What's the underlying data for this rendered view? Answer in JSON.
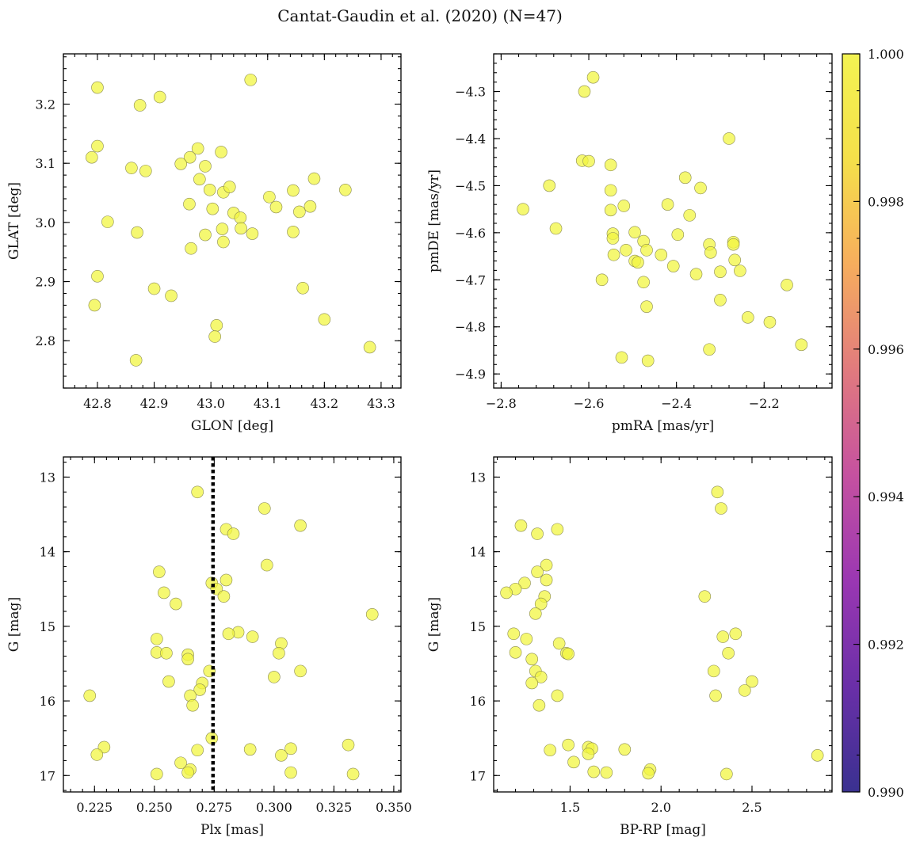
{
  "figure": {
    "title": "Cantat-Gaudin et al. (2020) (N=47)",
    "point_color": "#f2f542",
    "colorbar": {
      "colormap": "plasma",
      "range": [
        0.99,
        1.0
      ],
      "ticks": [
        0.99,
        0.992,
        0.994,
        0.996,
        0.998,
        1.0
      ],
      "tick_labels": [
        "0.990",
        "0.992",
        "0.994",
        "0.996",
        "0.998",
        "1.000"
      ],
      "stops": [
        "#3a3190",
        "#6a2fa8",
        "#9a37b2",
        "#c551a0",
        "#e17a7e",
        "#f6ad5d",
        "#f5e04a",
        "#f3f352"
      ]
    }
  },
  "chart_data": [
    {
      "type": "scatter",
      "id": "glon-glat",
      "xlabel": "GLON [deg]",
      "ylabel": "GLAT [deg]",
      "xlim": [
        42.74,
        43.335
      ],
      "ylim": [
        2.72,
        3.285
      ],
      "xticks": [
        42.8,
        42.9,
        43.0,
        43.1,
        43.2,
        43.3
      ],
      "xtick_labels": [
        "42.8",
        "42.9",
        "43.0",
        "43.1",
        "43.2",
        "43.3"
      ],
      "yticks": [
        2.8,
        2.9,
        3.0,
        3.1,
        3.2
      ],
      "ytick_labels": [
        "2.8",
        "2.9",
        "3.0",
        "3.1",
        "3.2"
      ],
      "xminor": 0.02,
      "yminor": 0.02,
      "y_inverted": false,
      "points": [
        [
          42.8,
          3.228
        ],
        [
          43.07,
          3.241
        ],
        [
          42.91,
          3.212
        ],
        [
          42.875,
          3.198
        ],
        [
          42.8,
          3.129
        ],
        [
          42.79,
          3.11
        ],
        [
          42.977,
          3.125
        ],
        [
          42.963,
          3.11
        ],
        [
          42.947,
          3.099
        ],
        [
          42.86,
          3.092
        ],
        [
          42.885,
          3.087
        ],
        [
          42.99,
          3.095
        ],
        [
          43.018,
          3.119
        ],
        [
          42.98,
          3.073
        ],
        [
          42.998,
          3.055
        ],
        [
          43.022,
          3.051
        ],
        [
          43.033,
          3.06
        ],
        [
          43.103,
          3.043
        ],
        [
          43.237,
          3.055
        ],
        [
          43.145,
          3.054
        ],
        [
          43.182,
          3.074
        ],
        [
          42.962,
          3.031
        ],
        [
          43.003,
          3.023
        ],
        [
          43.04,
          3.016
        ],
        [
          43.052,
          3.008
        ],
        [
          43.115,
          3.026
        ],
        [
          43.156,
          3.018
        ],
        [
          43.175,
          3.027
        ],
        [
          42.818,
          3.001
        ],
        [
          42.87,
          2.983
        ],
        [
          42.99,
          2.979
        ],
        [
          43.02,
          2.989
        ],
        [
          43.053,
          2.99
        ],
        [
          43.073,
          2.981
        ],
        [
          43.145,
          2.984
        ],
        [
          42.965,
          2.956
        ],
        [
          43.022,
          2.967
        ],
        [
          42.8,
          2.909
        ],
        [
          42.795,
          2.86
        ],
        [
          42.9,
          2.888
        ],
        [
          42.93,
          2.876
        ],
        [
          43.162,
          2.889
        ],
        [
          43.01,
          2.826
        ],
        [
          43.007,
          2.807
        ],
        [
          43.2,
          2.836
        ],
        [
          42.868,
          2.767
        ],
        [
          43.28,
          2.789
        ]
      ]
    },
    {
      "type": "scatter",
      "id": "pm",
      "xlabel": "pmRA [mas/yr]",
      "ylabel": "pmDE [mas/yr]",
      "xlim": [
        -2.817,
        -2.045
      ],
      "ylim": [
        -4.93,
        -4.22
      ],
      "xticks": [
        -2.8,
        -2.6,
        -2.4,
        -2.2
      ],
      "xtick_labels": [
        "−2.8",
        "−2.6",
        "−2.4",
        "−2.2"
      ],
      "yticks": [
        -4.9,
        -4.8,
        -4.7,
        -4.6,
        -4.5,
        -4.4,
        -4.3
      ],
      "ytick_labels": [
        "−4.9",
        "−4.8",
        "−4.7",
        "−4.6",
        "−4.5",
        "−4.4",
        "−4.3"
      ],
      "xminor": 0.04,
      "yminor": 0.02,
      "y_inverted": false,
      "points": [
        [
          -2.59,
          -4.27
        ],
        [
          -2.61,
          -4.3
        ],
        [
          -2.28,
          -4.4
        ],
        [
          -2.615,
          -4.447
        ],
        [
          -2.6,
          -4.448
        ],
        [
          -2.69,
          -4.5
        ],
        [
          -2.75,
          -4.55
        ],
        [
          -2.55,
          -4.456
        ],
        [
          -2.38,
          -4.483
        ],
        [
          -2.345,
          -4.505
        ],
        [
          -2.55,
          -4.51
        ],
        [
          -2.42,
          -4.54
        ],
        [
          -2.52,
          -4.543
        ],
        [
          -2.55,
          -4.552
        ],
        [
          -2.37,
          -4.563
        ],
        [
          -2.675,
          -4.591
        ],
        [
          -2.545,
          -4.602
        ],
        [
          -2.495,
          -4.599
        ],
        [
          -2.397,
          -4.604
        ],
        [
          -2.545,
          -4.612
        ],
        [
          -2.475,
          -4.618
        ],
        [
          -2.325,
          -4.625
        ],
        [
          -2.27,
          -4.62
        ],
        [
          -2.27,
          -4.625
        ],
        [
          -2.515,
          -4.637
        ],
        [
          -2.468,
          -4.637
        ],
        [
          -2.322,
          -4.642
        ],
        [
          -2.543,
          -4.647
        ],
        [
          -2.435,
          -4.647
        ],
        [
          -2.495,
          -4.66
        ],
        [
          -2.488,
          -4.663
        ],
        [
          -2.267,
          -4.658
        ],
        [
          -2.407,
          -4.671
        ],
        [
          -2.3,
          -4.683
        ],
        [
          -2.255,
          -4.681
        ],
        [
          -2.355,
          -4.688
        ],
        [
          -2.57,
          -4.7
        ],
        [
          -2.475,
          -4.705
        ],
        [
          -2.148,
          -4.711
        ],
        [
          -2.3,
          -4.743
        ],
        [
          -2.468,
          -4.757
        ],
        [
          -2.237,
          -4.78
        ],
        [
          -2.187,
          -4.79
        ],
        [
          -2.115,
          -4.838
        ],
        [
          -2.325,
          -4.848
        ],
        [
          -2.525,
          -4.865
        ],
        [
          -2.465,
          -4.872
        ]
      ]
    },
    {
      "type": "scatter",
      "id": "plx-g",
      "xlabel": "Plx [mas]",
      "ylabel": "G [mag]",
      "xlim": [
        0.212,
        0.353
      ],
      "ylim": [
        12.73,
        17.22
      ],
      "y_inverted": true,
      "xticks": [
        0.225,
        0.25,
        0.275,
        0.3,
        0.325,
        0.35
      ],
      "xtick_labels": [
        "0.225",
        "0.250",
        "0.275",
        "0.300",
        "0.325",
        "0.350"
      ],
      "yticks": [
        13,
        14,
        15,
        16,
        17
      ],
      "ytick_labels": [
        "13",
        "14",
        "15",
        "16",
        "17"
      ],
      "xminor": 0.005,
      "yminor": 0.2,
      "vline_x": 0.2745,
      "points": [
        [
          0.268,
          13.2
        ],
        [
          0.296,
          13.42
        ],
        [
          0.311,
          13.65
        ],
        [
          0.28,
          13.7
        ],
        [
          0.283,
          13.76
        ],
        [
          0.297,
          14.18
        ],
        [
          0.252,
          14.27
        ],
        [
          0.28,
          14.38
        ],
        [
          0.274,
          14.42
        ],
        [
          0.276,
          14.5
        ],
        [
          0.254,
          14.55
        ],
        [
          0.279,
          14.6
        ],
        [
          0.259,
          14.7
        ],
        [
          0.341,
          14.84
        ],
        [
          0.285,
          15.08
        ],
        [
          0.281,
          15.1
        ],
        [
          0.291,
          15.14
        ],
        [
          0.251,
          15.17
        ],
        [
          0.303,
          15.23
        ],
        [
          0.251,
          15.35
        ],
        [
          0.255,
          15.36
        ],
        [
          0.302,
          15.36
        ],
        [
          0.264,
          15.38
        ],
        [
          0.264,
          15.44
        ],
        [
          0.311,
          15.6
        ],
        [
          0.273,
          15.6
        ],
        [
          0.3,
          15.68
        ],
        [
          0.256,
          15.74
        ],
        [
          0.27,
          15.76
        ],
        [
          0.269,
          15.85
        ],
        [
          0.265,
          15.93
        ],
        [
          0.223,
          15.93
        ],
        [
          0.266,
          16.06
        ],
        [
          0.229,
          16.62
        ],
        [
          0.268,
          16.66
        ],
        [
          0.29,
          16.65
        ],
        [
          0.307,
          16.64
        ],
        [
          0.331,
          16.59
        ],
        [
          0.226,
          16.72
        ],
        [
          0.303,
          16.73
        ],
        [
          0.261,
          16.83
        ],
        [
          0.265,
          16.92
        ],
        [
          0.264,
          16.96
        ],
        [
          0.307,
          16.96
        ],
        [
          0.251,
          16.98
        ],
        [
          0.333,
          16.98
        ],
        [
          0.274,
          16.5
        ]
      ]
    },
    {
      "type": "scatter",
      "id": "cmd",
      "xlabel": "BP-RP [mag]",
      "ylabel": "G [mag]",
      "xlim": [
        1.08,
        2.94
      ],
      "ylim": [
        12.73,
        17.22
      ],
      "y_inverted": true,
      "xticks": [
        1.5,
        2.0,
        2.5
      ],
      "xtick_labels": [
        "1.5",
        "2.0",
        "2.5"
      ],
      "yticks": [
        13,
        14,
        15,
        16,
        17
      ],
      "ytick_labels": [
        "13",
        "14",
        "15",
        "16",
        "17"
      ],
      "xminor": 0.1,
      "yminor": 0.2,
      "points": [
        [
          2.31,
          13.2
        ],
        [
          2.33,
          13.42
        ],
        [
          1.23,
          13.65
        ],
        [
          1.43,
          13.7
        ],
        [
          1.32,
          13.76
        ],
        [
          1.37,
          14.18
        ],
        [
          1.32,
          14.27
        ],
        [
          1.37,
          14.38
        ],
        [
          1.25,
          14.42
        ],
        [
          1.2,
          14.5
        ],
        [
          1.15,
          14.55
        ],
        [
          1.36,
          14.6
        ],
        [
          2.24,
          14.6
        ],
        [
          1.34,
          14.7
        ],
        [
          1.31,
          14.83
        ],
        [
          2.41,
          15.1
        ],
        [
          1.19,
          15.1
        ],
        [
          2.34,
          15.14
        ],
        [
          1.26,
          15.17
        ],
        [
          1.44,
          15.23
        ],
        [
          1.2,
          15.35
        ],
        [
          1.48,
          15.36
        ],
        [
          1.49,
          15.37
        ],
        [
          2.37,
          15.36
        ],
        [
          1.29,
          15.44
        ],
        [
          2.29,
          15.6
        ],
        [
          1.31,
          15.6
        ],
        [
          1.34,
          15.68
        ],
        [
          2.5,
          15.74
        ],
        [
          1.29,
          15.76
        ],
        [
          2.46,
          15.86
        ],
        [
          1.43,
          15.93
        ],
        [
          2.3,
          15.93
        ],
        [
          1.33,
          16.06
        ],
        [
          1.49,
          16.59
        ],
        [
          1.6,
          16.62
        ],
        [
          1.62,
          16.64
        ],
        [
          1.8,
          16.65
        ],
        [
          1.39,
          16.66
        ],
        [
          1.6,
          16.71
        ],
        [
          2.86,
          16.73
        ],
        [
          1.52,
          16.82
        ],
        [
          1.94,
          16.92
        ],
        [
          1.63,
          16.95
        ],
        [
          1.7,
          16.96
        ],
        [
          1.93,
          16.97
        ],
        [
          2.36,
          16.98
        ]
      ]
    }
  ]
}
